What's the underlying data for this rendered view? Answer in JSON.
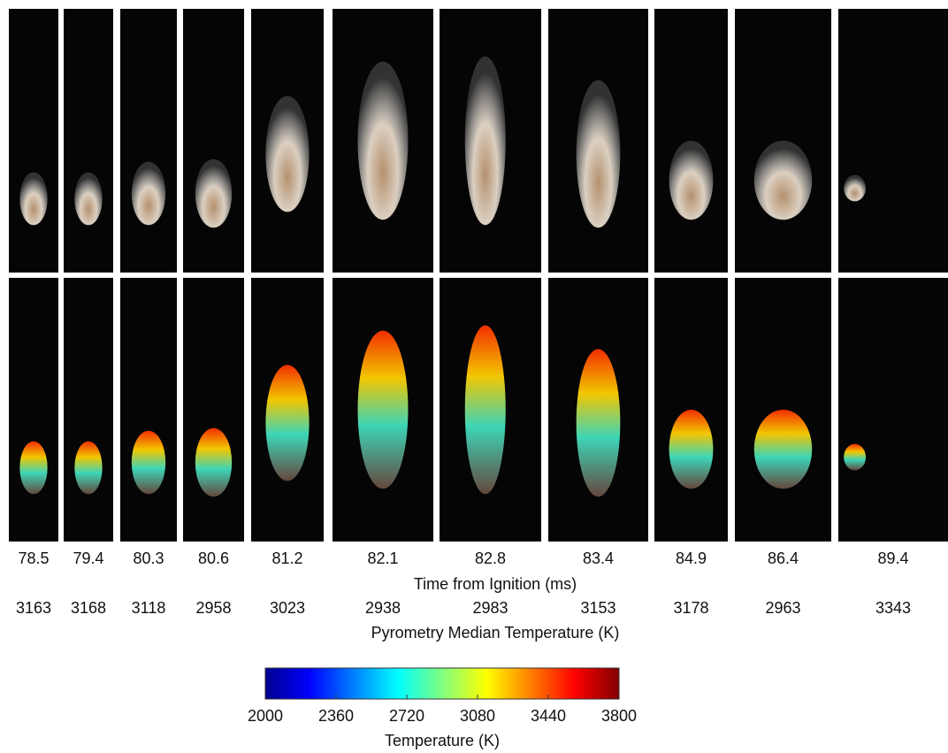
{
  "frames": [
    {
      "time": 78.5,
      "temperature": 3163
    },
    {
      "time": 79.4,
      "temperature": 3168
    },
    {
      "time": 80.3,
      "temperature": 3118
    },
    {
      "time": 80.6,
      "temperature": 2958
    },
    {
      "time": 81.2,
      "temperature": 3023
    },
    {
      "time": 82.1,
      "temperature": 2938
    },
    {
      "time": 82.8,
      "temperature": 2983
    },
    {
      "time": 83.4,
      "temperature": 3153
    },
    {
      "time": 84.9,
      "temperature": 3178
    },
    {
      "time": 86.4,
      "temperature": 2963
    },
    {
      "time": 89.4,
      "temperature": 3343
    }
  ],
  "time_axis_label": "Time from Ignition (ms)",
  "temperature_axis_label": "Pyrometry Median Temperature (K)",
  "colorbar": {
    "ticks": [
      2000,
      2360,
      2720,
      3080,
      3440,
      3800
    ],
    "label": "Temperature (K)"
  }
}
